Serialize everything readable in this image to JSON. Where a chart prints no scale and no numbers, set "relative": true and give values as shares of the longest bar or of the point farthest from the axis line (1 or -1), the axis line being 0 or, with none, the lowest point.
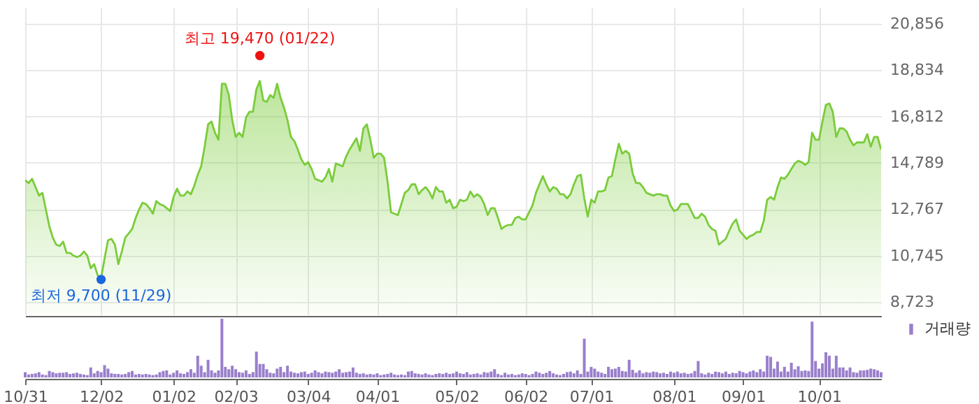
{
  "chart_data": [
    {
      "type": "area",
      "categories": [
        null,
        null,
        null,
        null,
        null,
        null,
        null,
        null,
        null,
        null,
        null,
        null,
        null,
        null,
        null,
        null,
        null,
        null,
        null,
        null,
        null,
        null,
        null,
        null,
        null,
        null,
        null,
        null,
        null,
        null,
        null,
        null,
        null,
        null,
        null,
        null,
        null,
        null,
        null,
        null,
        null,
        null,
        null,
        null,
        null,
        null,
        null,
        null,
        null,
        null,
        null,
        null,
        null,
        null,
        null,
        null,
        null,
        null,
        null,
        null,
        null,
        null,
        null,
        null,
        null,
        null,
        null,
        null,
        null,
        null,
        null,
        null,
        null,
        null,
        null,
        null,
        null,
        null,
        null,
        null,
        null,
        null,
        null,
        null,
        null,
        null,
        null,
        null,
        null,
        null,
        null,
        null,
        null,
        null,
        null,
        null,
        null,
        null,
        null,
        null,
        null,
        null,
        null,
        null,
        null,
        null,
        null,
        null,
        null,
        null,
        null,
        null,
        null,
        null,
        null,
        null,
        null,
        null,
        null,
        null,
        null,
        null,
        null,
        null,
        null,
        null,
        null,
        null,
        null,
        null,
        null,
        null,
        null,
        null,
        null,
        null,
        null,
        null,
        null,
        null,
        null,
        null,
        null,
        null,
        null,
        null,
        null,
        null,
        null,
        null,
        null,
        null,
        null,
        null,
        null,
        null,
        null,
        null,
        null,
        null,
        null,
        null,
        null,
        null,
        null,
        null,
        null,
        null,
        null,
        null,
        null,
        null,
        null,
        null,
        null,
        null,
        null,
        null,
        null,
        null,
        null,
        null,
        null,
        null,
        null,
        null,
        null,
        null,
        null,
        null,
        null,
        null,
        null,
        null,
        null,
        null,
        null,
        null,
        null,
        null,
        null,
        null,
        null,
        null,
        null,
        null,
        null,
        null,
        null,
        null,
        null,
        null,
        null,
        null,
        null,
        null,
        null,
        null,
        null,
        null,
        null,
        null,
        null,
        null,
        null,
        null,
        null,
        null,
        null,
        null,
        null,
        null,
        null,
        null,
        null,
        null,
        null,
        null,
        null,
        null,
        null,
        null,
        null,
        null,
        null,
        null,
        null,
        null,
        null
      ],
      "series": [
        {
          "color": "#7acc3a",
          "values": [
            14030,
            13910,
            14090,
            13730,
            13360,
            13480,
            12750,
            12020,
            11530,
            11220,
            11160,
            11350,
            10860,
            10860,
            10740,
            10680,
            10740,
            10920,
            10740,
            10190,
            10370,
            9880,
            9760,
            10610,
            11410,
            11470,
            11220,
            10370,
            10920,
            11530,
            11710,
            11900,
            12380,
            12750,
            13050,
            12990,
            12810,
            12570,
            13120,
            12990,
            12930,
            12810,
            12690,
            13300,
            13660,
            13360,
            13360,
            13540,
            13420,
            13790,
            14270,
            14640,
            15490,
            16470,
            16590,
            16100,
            15800,
            18240,
            18240,
            17750,
            16650,
            15920,
            16100,
            15920,
            16770,
            17020,
            17020,
            18000,
            18360,
            17510,
            17450,
            17750,
            17630,
            18240,
            17630,
            17200,
            16650,
            15920,
            15740,
            15370,
            14950,
            14700,
            14820,
            14520,
            14090,
            14030,
            13970,
            14150,
            14520,
            13970,
            14760,
            14700,
            14640,
            15070,
            15370,
            15620,
            15860,
            15310,
            16290,
            16470,
            15800,
            15010,
            15190,
            15190,
            15010,
            13970,
            12630,
            12570,
            12510,
            12990,
            13480,
            13600,
            13850,
            13850,
            13420,
            13600,
            13730,
            13540,
            13240,
            13730,
            13540,
            13540,
            13050,
            13180,
            12810,
            12870,
            13180,
            13120,
            13180,
            13540,
            13300,
            13420,
            13300,
            12990,
            12510,
            12810,
            12810,
            12380,
            11900,
            12020,
            12080,
            12080,
            12380,
            12440,
            12320,
            12320,
            12630,
            12930,
            13480,
            13850,
            14210,
            13850,
            13540,
            13730,
            13660,
            13420,
            13420,
            13240,
            13420,
            13850,
            14210,
            14270,
            13240,
            12440,
            13180,
            13050,
            13540,
            13540,
            13600,
            14150,
            14210,
            14950,
            15620,
            15190,
            15310,
            15190,
            14330,
            13910,
            13910,
            13730,
            13480,
            13420,
            13360,
            13420,
            13420,
            13360,
            13360,
            12930,
            12690,
            12750,
            12990,
            12990,
            12990,
            12690,
            12380,
            12380,
            12570,
            12440,
            12080,
            11900,
            11830,
            11220,
            11350,
            11470,
            11830,
            12140,
            12320,
            11830,
            11650,
            11470,
            11590,
            11650,
            11770,
            11770,
            12260,
            13180,
            13300,
            13180,
            13730,
            14150,
            14090,
            14270,
            14520,
            14760,
            14880,
            14820,
            14700,
            14820,
            16100,
            15800,
            15800,
            16590,
            17320,
            17380,
            17020,
            15920,
            16290,
            16290,
            16160,
            15800,
            15550,
            15680,
            15680,
            15680,
            16040,
            15490,
            15920,
            15920,
            15370
          ]
        }
      ],
      "ylim": [
        8170,
        21590
      ],
      "yticks": [
        {
          "value": 8723,
          "label": "8,723"
        },
        {
          "value": 10745,
          "label": "10,745"
        },
        {
          "value": 12767,
          "label": "12,767"
        },
        {
          "value": 14789,
          "label": "14,789"
        },
        {
          "value": 16812,
          "label": "16,812"
        },
        {
          "value": 18834,
          "label": "18,834"
        },
        {
          "value": 20856,
          "label": "20,856"
        }
      ],
      "grid": true,
      "tick_labels": "y",
      "annotations": [
        {
          "text": "최고 19,470 (01/22)",
          "y": 19470
        },
        {
          "text": "최저 9,700 (11/29)",
          "y": 9700
        }
      ]
    },
    {
      "type": "bar",
      "relative": true,
      "categories": [
        "10/31",
        null,
        null,
        null,
        null,
        null,
        null,
        null,
        null,
        null,
        null,
        null,
        null,
        null,
        null,
        null,
        null,
        null,
        null,
        null,
        null,
        null,
        "12/02",
        null,
        null,
        null,
        null,
        null,
        null,
        null,
        null,
        null,
        null,
        null,
        null,
        null,
        null,
        null,
        null,
        null,
        null,
        null,
        null,
        "01/02",
        null,
        null,
        null,
        null,
        null,
        null,
        null,
        null,
        null,
        null,
        null,
        null,
        null,
        null,
        null,
        null,
        null,
        "02/03",
        null,
        null,
        null,
        null,
        null,
        null,
        null,
        null,
        null,
        null,
        null,
        null,
        null,
        null,
        null,
        null,
        null,
        null,
        null,
        null,
        "03/04",
        null,
        null,
        null,
        null,
        null,
        null,
        null,
        null,
        null,
        null,
        null,
        null,
        null,
        null,
        null,
        null,
        null,
        null,
        null,
        "04/01",
        null,
        null,
        null,
        null,
        null,
        null,
        null,
        null,
        null,
        null,
        null,
        null,
        null,
        null,
        null,
        null,
        null,
        null,
        null,
        null,
        null,
        null,
        "05/02",
        null,
        null,
        null,
        null,
        null,
        null,
        null,
        null,
        null,
        null,
        null,
        null,
        null,
        null,
        null,
        null,
        null,
        null,
        null,
        "06/02",
        null,
        null,
        null,
        null,
        null,
        null,
        null,
        null,
        null,
        null,
        null,
        null,
        null,
        null,
        null,
        null,
        null,
        null,
        "07/01",
        null,
        null,
        null,
        null,
        null,
        null,
        null,
        null,
        null,
        null,
        null,
        null,
        null,
        null,
        null,
        null,
        null,
        null,
        null,
        null,
        null,
        null,
        null,
        "08/01",
        null,
        null,
        null,
        null,
        null,
        null,
        null,
        null,
        null,
        null,
        null,
        null,
        null,
        null,
        null,
        null,
        null,
        null,
        null,
        "09/01",
        null,
        null,
        null,
        null,
        null,
        null,
        null,
        null,
        null,
        null,
        null,
        null,
        null,
        null,
        null,
        null,
        null,
        null,
        null,
        null,
        null,
        "10/01",
        null,
        null,
        null,
        null,
        null,
        null,
        null,
        null,
        null,
        null,
        null,
        null,
        null,
        null,
        null,
        null,
        null,
        null
      ],
      "series": [
        {
          "name": "거래량",
          "color": "#9a7fcc",
          "values": [
            0.09,
            0.05,
            0.06,
            0.07,
            0.09,
            0.05,
            0.04,
            0.11,
            0.09,
            0.07,
            0.08,
            0.08,
            0.09,
            0.06,
            0.07,
            0.08,
            0.06,
            0.05,
            0.04,
            0.17,
            0.07,
            0.11,
            0.09,
            0.21,
            0.15,
            0.07,
            0.06,
            0.06,
            0.05,
            0.06,
            0.09,
            0.11,
            0.05,
            0.06,
            0.05,
            0.06,
            0.05,
            0.04,
            0.05,
            0.09,
            0.11,
            0.12,
            0.05,
            0.08,
            0.12,
            0.07,
            0.06,
            0.09,
            0.14,
            0.08,
            0.37,
            0.2,
            0.09,
            0.3,
            0.12,
            0.08,
            0.12,
            1,
            0.18,
            0.14,
            0.2,
            0.14,
            0.09,
            0.08,
            0.12,
            0.06,
            0.09,
            0.44,
            0.23,
            0.23,
            0.14,
            0.08,
            0.07,
            0.15,
            0.18,
            0.09,
            0.2,
            0.1,
            0.08,
            0.07,
            0.09,
            0.1,
            0.06,
            0.08,
            0.12,
            0.09,
            0.07,
            0.1,
            0.09,
            0.08,
            0.1,
            0.14,
            0.08,
            0.09,
            0.1,
            0.17,
            0.08,
            0.06,
            0.07,
            0.05,
            0.06,
            0.05,
            0.07,
            0.04,
            0.05,
            0.06,
            0.08,
            0.05,
            0.04,
            0.05,
            0.04,
            0.1,
            0.11,
            0.07,
            0.06,
            0.05,
            0.07,
            0.05,
            0.04,
            0.06,
            0.07,
            0.06,
            0.08,
            0.06,
            0.07,
            0.1,
            0.07,
            0.06,
            0.09,
            0.05,
            0.06,
            0.07,
            0.05,
            0.09,
            0.08,
            0.1,
            0.14,
            0.06,
            0.04,
            0.08,
            0.05,
            0.06,
            0.04,
            0.05,
            0.07,
            0.06,
            0.04,
            0.06,
            0.1,
            0.08,
            0.06,
            0.08,
            0.11,
            0.07,
            0.05,
            0.04,
            0.06,
            0.09,
            0.1,
            0.07,
            0.12,
            0.06,
            0.66,
            0.1,
            0.18,
            0.15,
            0.1,
            0.08,
            0.06,
            0.18,
            0.14,
            0.15,
            0.18,
            0.11,
            0.1,
            0.3,
            0.13,
            0.08,
            0.12,
            0.07,
            0.09,
            0.08,
            0.1,
            0.09,
            0.07,
            0.08,
            0.06,
            0.1,
            0.08,
            0.1,
            0.07,
            0.08,
            0.06,
            0.07,
            0.11,
            0.28,
            0.07,
            0.05,
            0.08,
            0.06,
            0.1,
            0.09,
            0.07,
            0.1,
            0.06,
            0.08,
            0.07,
            0.11,
            0.09,
            0.07,
            0.1,
            0.12,
            0.09,
            0.14,
            0.1,
            0.37,
            0.35,
            0.15,
            0.27,
            0.1,
            0.18,
            0.1,
            0.25,
            0.14,
            0.19,
            0.11,
            0.12,
            0.11,
            0.95,
            0.28,
            0.15,
            0.24,
            0.43,
            0.37,
            0.15,
            0.37,
            0.17,
            0.17,
            0.12,
            0.17,
            0.09,
            0.08,
            0.12,
            0.12,
            0.13,
            0.15,
            0.14,
            0.12,
            0.09
          ]
        }
      ],
      "legend": "top right",
      "tick_labels": "x"
    }
  ]
}
